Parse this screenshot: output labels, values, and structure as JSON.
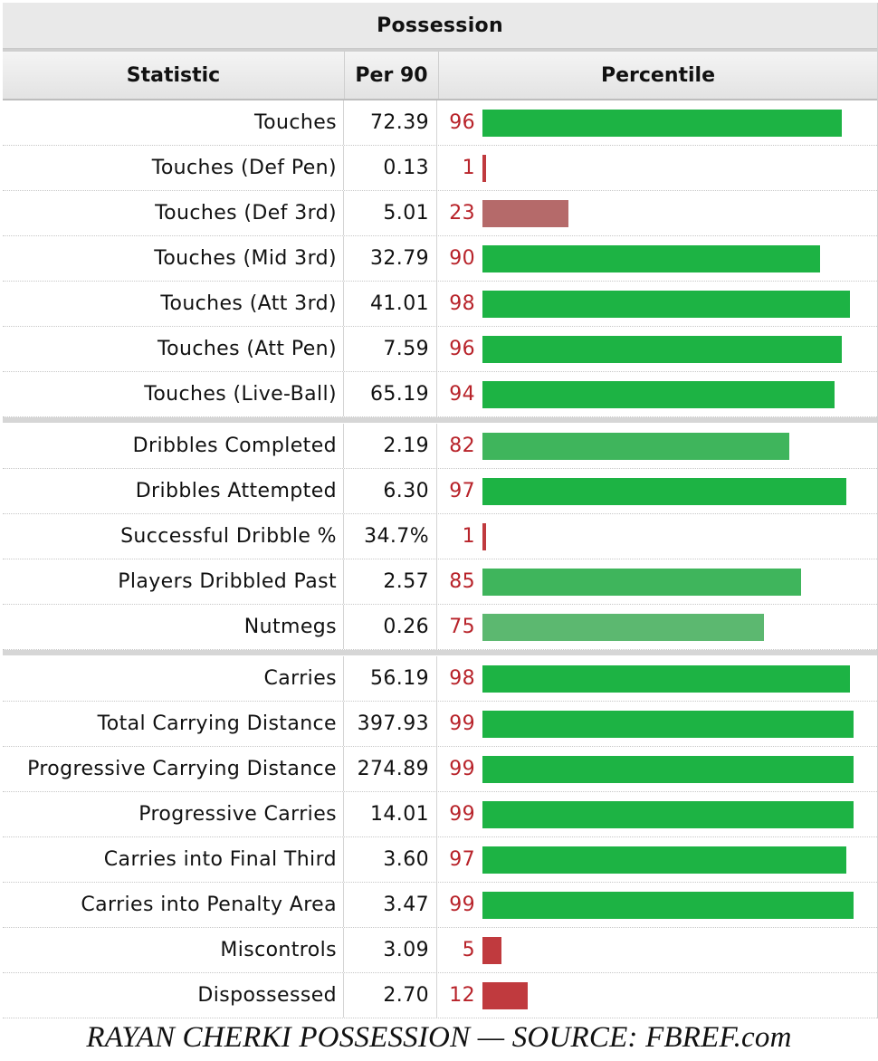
{
  "caption": "Possession",
  "headers": {
    "statistic": "Statistic",
    "per90": "Per 90",
    "percentile": "Percentile"
  },
  "footer": "RAYAN CHERKI POSSESSION — SOURCE: FBREF.com",
  "colors": {
    "high": "#1db344",
    "mid_high": "#3fb55c",
    "mid": "#5cb870",
    "low": "#b56a6a",
    "very_low": "#c03a3e",
    "pct_text": "#b8232a"
  },
  "chart_data": {
    "type": "bar",
    "orientation": "horizontal",
    "title": "Possession",
    "xlim": [
      0,
      100
    ],
    "groups": [
      {
        "rows": [
          {
            "statistic": "Touches",
            "per90": "72.39",
            "percentile": 96
          },
          {
            "statistic": "Touches (Def Pen)",
            "per90": "0.13",
            "percentile": 1
          },
          {
            "statistic": "Touches (Def 3rd)",
            "per90": "5.01",
            "percentile": 23
          },
          {
            "statistic": "Touches (Mid 3rd)",
            "per90": "32.79",
            "percentile": 90
          },
          {
            "statistic": "Touches (Att 3rd)",
            "per90": "41.01",
            "percentile": 98
          },
          {
            "statistic": "Touches (Att Pen)",
            "per90": "7.59",
            "percentile": 96
          },
          {
            "statistic": "Touches (Live-Ball)",
            "per90": "65.19",
            "percentile": 94
          }
        ]
      },
      {
        "rows": [
          {
            "statistic": "Dribbles Completed",
            "per90": "2.19",
            "percentile": 82
          },
          {
            "statistic": "Dribbles Attempted",
            "per90": "6.30",
            "percentile": 97
          },
          {
            "statistic": "Successful Dribble %",
            "per90": "34.7%",
            "percentile": 1
          },
          {
            "statistic": "Players Dribbled Past",
            "per90": "2.57",
            "percentile": 85
          },
          {
            "statistic": "Nutmegs",
            "per90": "0.26",
            "percentile": 75
          }
        ]
      },
      {
        "rows": [
          {
            "statistic": "Carries",
            "per90": "56.19",
            "percentile": 98
          },
          {
            "statistic": "Total Carrying Distance",
            "per90": "397.93",
            "percentile": 99
          },
          {
            "statistic": "Progressive Carrying Distance",
            "per90": "274.89",
            "percentile": 99
          },
          {
            "statistic": "Progressive Carries",
            "per90": "14.01",
            "percentile": 99
          },
          {
            "statistic": "Carries into Final Third",
            "per90": "3.60",
            "percentile": 97
          },
          {
            "statistic": "Carries into Penalty Area",
            "per90": "3.47",
            "percentile": 99
          },
          {
            "statistic": "Miscontrols",
            "per90": "3.09",
            "percentile": 5
          },
          {
            "statistic": "Dispossessed",
            "per90": "2.70",
            "percentile": 12
          }
        ]
      }
    ]
  }
}
